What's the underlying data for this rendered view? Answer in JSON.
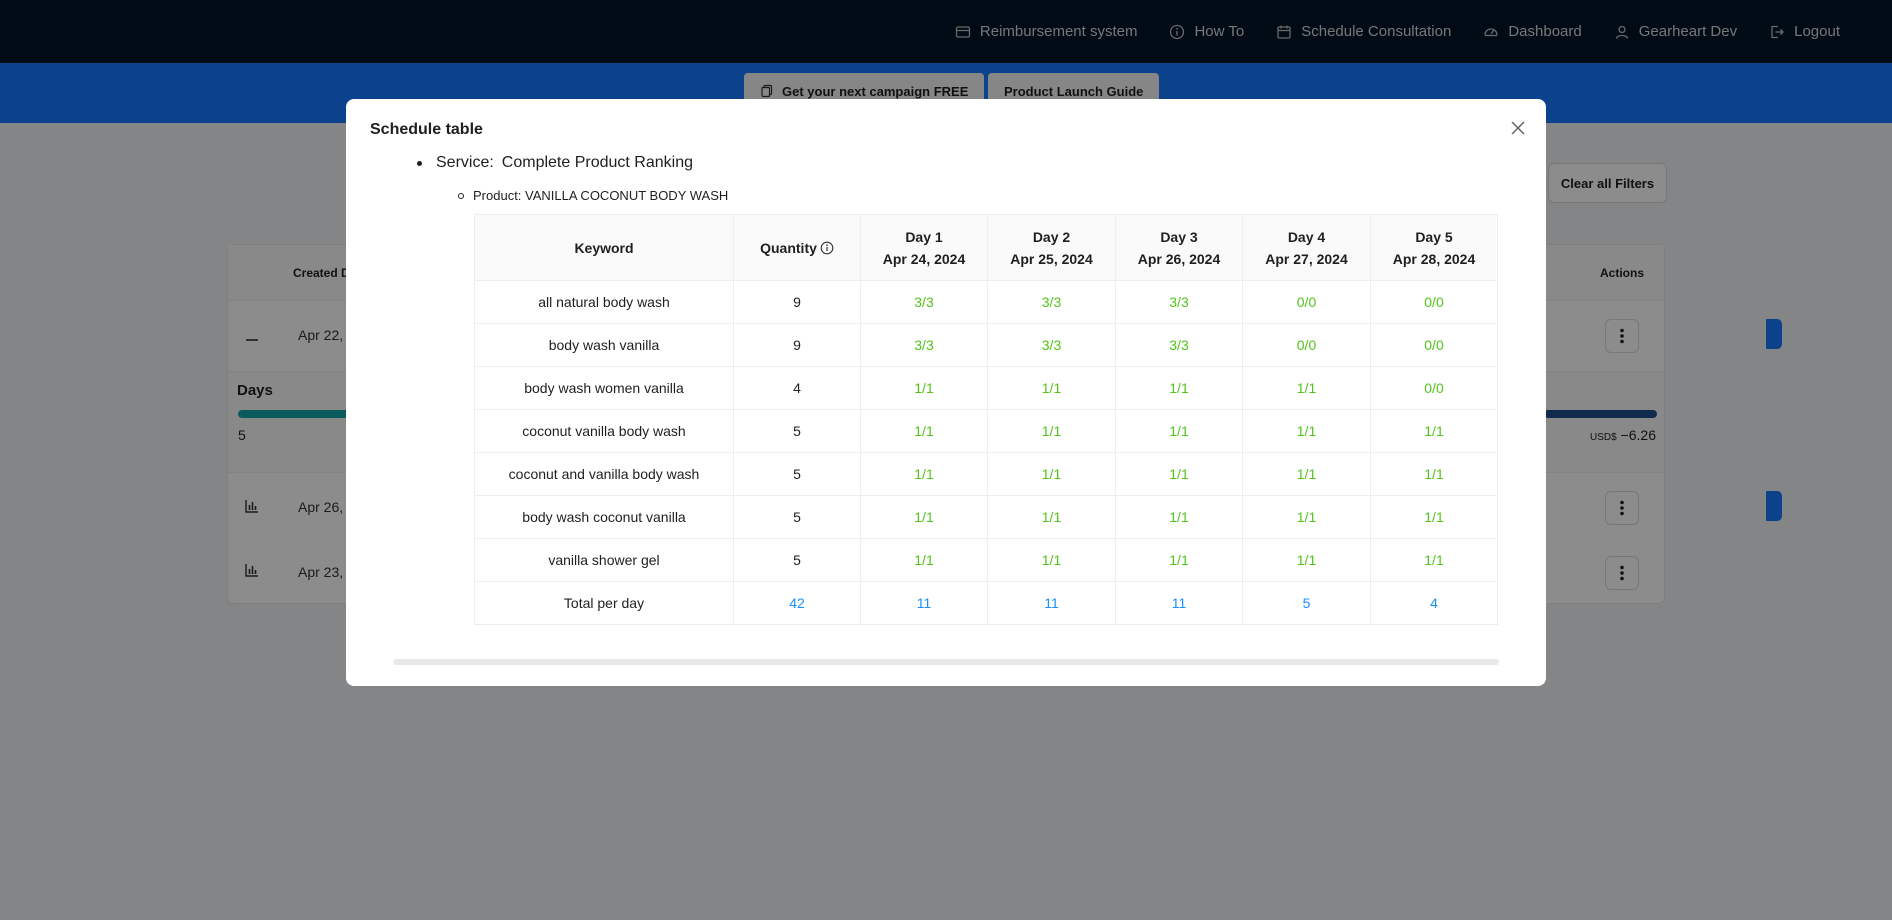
{
  "nav": {
    "items": [
      {
        "label": "Reimbursement system",
        "icon": "card-icon"
      },
      {
        "label": "How To",
        "icon": "info-circle-icon"
      },
      {
        "label": "Schedule Consultation",
        "icon": "calendar-icon"
      },
      {
        "label": "Dashboard",
        "icon": "dashboard-icon"
      },
      {
        "label": "Gearheart Dev",
        "icon": "user-icon"
      },
      {
        "label": "Logout",
        "icon": "logout-icon"
      }
    ]
  },
  "banner": {
    "campaign_label": "Get your next campaign FREE",
    "guide_label": "Product Launch Guide"
  },
  "background": {
    "clear_filters_label": "Clear all Filters",
    "created_header": "Created D",
    "actions_header": "Actions",
    "rows": [
      {
        "date": "Apr 22, "
      },
      {
        "date": "Apr 26, "
      },
      {
        "date": "Apr 23, "
      }
    ],
    "days_label": "Days",
    "days_value": "5",
    "usd_prefix": "USD$",
    "usd_value": " −6.26"
  },
  "modal": {
    "title": "Schedule table",
    "service_label": "Service:",
    "service_value": "Complete Product Ranking",
    "product_line": "Product: VANILLA COCONUT BODY WASH",
    "headers": {
      "keyword": "Keyword",
      "quantity": "Quantity",
      "days": [
        {
          "day": "Day 1",
          "date": "Apr 24, 2024"
        },
        {
          "day": "Day 2",
          "date": "Apr 25, 2024"
        },
        {
          "day": "Day 3",
          "date": "Apr 26, 2024"
        },
        {
          "day": "Day 4",
          "date": "Apr 27, 2024"
        },
        {
          "day": "Day 5",
          "date": "Apr 28, 2024"
        }
      ]
    },
    "rows": [
      {
        "keyword": "all natural body wash",
        "quantity": "9",
        "days": [
          "3/3",
          "3/3",
          "3/3",
          "0/0",
          "0/0"
        ]
      },
      {
        "keyword": "body wash vanilla",
        "quantity": "9",
        "days": [
          "3/3",
          "3/3",
          "3/3",
          "0/0",
          "0/0"
        ]
      },
      {
        "keyword": "body wash women vanilla",
        "quantity": "4",
        "days": [
          "1/1",
          "1/1",
          "1/1",
          "1/1",
          "0/0"
        ]
      },
      {
        "keyword": "coconut vanilla body wash",
        "quantity": "5",
        "days": [
          "1/1",
          "1/1",
          "1/1",
          "1/1",
          "1/1"
        ]
      },
      {
        "keyword": "coconut and vanilla body wash",
        "quantity": "5",
        "days": [
          "1/1",
          "1/1",
          "1/1",
          "1/1",
          "1/1"
        ]
      },
      {
        "keyword": "body wash coconut vanilla",
        "quantity": "5",
        "days": [
          "1/1",
          "1/1",
          "1/1",
          "1/1",
          "1/1"
        ]
      },
      {
        "keyword": "vanilla shower gel",
        "quantity": "5",
        "days": [
          "1/1",
          "1/1",
          "1/1",
          "1/1",
          "1/1"
        ]
      }
    ],
    "totals": {
      "label": "Total per day",
      "quantity": "42",
      "days": [
        "11",
        "11",
        "11",
        "5",
        "4"
      ]
    }
  },
  "colors": {
    "nav_bg": "#001529",
    "banner_bg": "#1677ff",
    "progress_green": "#52c41a",
    "total_blue": "#1890ff"
  }
}
